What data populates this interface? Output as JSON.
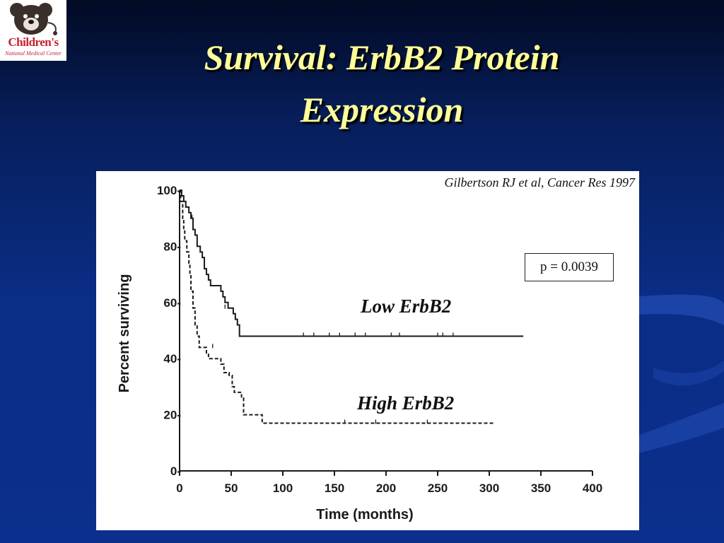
{
  "header": {
    "logo": {
      "name": "Children's",
      "subtitle": "National Medical Center"
    },
    "title_line1": "Survival: ErbB2 Protein",
    "title_line2": "Expression"
  },
  "citation": "Gilbertson RJ et al, Cancer Res 1997",
  "p_value": "p = 0.0039",
  "colors": {
    "title": "#ffff99",
    "background": "#0a2d86",
    "logo_red": "#c8202c"
  },
  "chart_data": {
    "type": "line",
    "xlabel": "Time (months)",
    "ylabel": "Percent surviving",
    "xlim": [
      0,
      400
    ],
    "ylim": [
      0,
      100
    ],
    "x_ticks": [
      0,
      50,
      100,
      150,
      200,
      250,
      300,
      350,
      400
    ],
    "y_ticks": [
      0,
      20,
      40,
      60,
      80,
      100
    ],
    "x_tick_labels": [
      "0",
      "50",
      "100",
      "150",
      "200",
      "250",
      "300",
      "350",
      "400"
    ],
    "y_tick_labels": [
      "0-",
      "20-",
      "40-",
      "60-",
      "80-",
      "100-"
    ],
    "grid": false,
    "series": [
      {
        "name": "Low ErbB2",
        "line_style": "solid",
        "steps": [
          [
            0,
            100
          ],
          [
            2,
            98
          ],
          [
            4,
            96
          ],
          [
            6,
            94
          ],
          [
            9,
            92
          ],
          [
            11,
            90
          ],
          [
            13,
            86
          ],
          [
            15,
            84
          ],
          [
            17,
            80
          ],
          [
            20,
            78
          ],
          [
            22,
            76
          ],
          [
            24,
            72
          ],
          [
            26,
            70
          ],
          [
            28,
            68
          ],
          [
            30,
            66
          ],
          [
            40,
            64
          ],
          [
            42,
            62
          ],
          [
            44,
            60
          ],
          [
            47,
            58
          ],
          [
            52,
            56
          ],
          [
            54,
            54
          ],
          [
            56,
            52
          ],
          [
            58,
            48
          ],
          [
            333,
            48
          ]
        ],
        "censored": [
          [
            12,
            90
          ],
          [
            44,
            58
          ],
          [
            120,
            48
          ],
          [
            130,
            48
          ],
          [
            145,
            48
          ],
          [
            155,
            48
          ],
          [
            170,
            48
          ],
          [
            180,
            48
          ],
          [
            205,
            48
          ],
          [
            213,
            48
          ],
          [
            250,
            48
          ],
          [
            255,
            48
          ],
          [
            265,
            48
          ]
        ]
      },
      {
        "name": "High ErbB2",
        "line_style": "dashed",
        "steps": [
          [
            0,
            100
          ],
          [
            1,
            96
          ],
          [
            3,
            90
          ],
          [
            4,
            86
          ],
          [
            5,
            82
          ],
          [
            7,
            78
          ],
          [
            9,
            74
          ],
          [
            10,
            70
          ],
          [
            11,
            64
          ],
          [
            13,
            58
          ],
          [
            15,
            52
          ],
          [
            17,
            48
          ],
          [
            19,
            44
          ],
          [
            26,
            42
          ],
          [
            28,
            40
          ],
          [
            40,
            38
          ],
          [
            43,
            35
          ],
          [
            48,
            34
          ],
          [
            51,
            30
          ],
          [
            53,
            28
          ],
          [
            60,
            26
          ],
          [
            62,
            20
          ],
          [
            80,
            17
          ],
          [
            304,
            17
          ]
        ],
        "censored": [
          [
            32,
            44
          ],
          [
            160,
            17
          ],
          [
            190,
            17
          ],
          [
            240,
            17
          ]
        ]
      }
    ]
  }
}
